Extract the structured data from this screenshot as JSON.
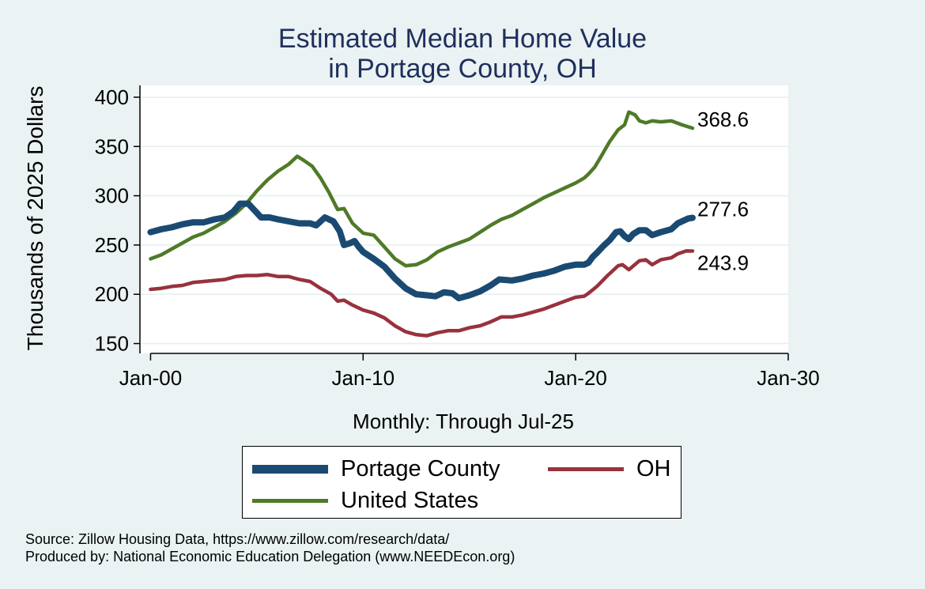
{
  "chart_data": {
    "type": "line",
    "title_lines": [
      "Estimated Median Home Value",
      "in Portage County, OH"
    ],
    "ylabel": "Thousands of 2025 Dollars",
    "xlabel": "Monthly: Through Jul-25",
    "ylim": [
      140,
      412
    ],
    "yticks": [
      150,
      200,
      250,
      300,
      350,
      400
    ],
    "xlim": [
      1999.5,
      2030.0
    ],
    "xticks": [
      {
        "value": 2000,
        "label": "Jan-00"
      },
      {
        "value": 2010,
        "label": "Jan-10"
      },
      {
        "value": 2020,
        "label": "Jan-20"
      },
      {
        "value": 2030,
        "label": "Jan-30"
      }
    ],
    "grid": true,
    "legend_position": "bottom",
    "series": [
      {
        "name": "Portage County",
        "color": "#1a4a72",
        "end_label": "277.6",
        "points": [
          [
            2000.0,
            263
          ],
          [
            2000.5,
            266
          ],
          [
            2001.0,
            268
          ],
          [
            2001.5,
            271
          ],
          [
            2002.0,
            273
          ],
          [
            2002.5,
            273
          ],
          [
            2003.0,
            276
          ],
          [
            2003.5,
            278
          ],
          [
            2003.9,
            284
          ],
          [
            2004.2,
            292
          ],
          [
            2004.6,
            292
          ],
          [
            2004.9,
            285
          ],
          [
            2005.2,
            278
          ],
          [
            2005.6,
            278
          ],
          [
            2006.0,
            276
          ],
          [
            2006.5,
            274
          ],
          [
            2007.0,
            272
          ],
          [
            2007.5,
            272
          ],
          [
            2007.8,
            270
          ],
          [
            2008.2,
            278
          ],
          [
            2008.6,
            274
          ],
          [
            2008.9,
            264
          ],
          [
            2009.1,
            250
          ],
          [
            2009.4,
            252
          ],
          [
            2009.6,
            254
          ],
          [
            2009.8,
            248
          ],
          [
            2010.0,
            243
          ],
          [
            2010.5,
            236
          ],
          [
            2011.0,
            228
          ],
          [
            2011.5,
            216
          ],
          [
            2012.0,
            206
          ],
          [
            2012.5,
            200
          ],
          [
            2013.0,
            199
          ],
          [
            2013.4,
            198
          ],
          [
            2013.8,
            202
          ],
          [
            2014.2,
            201
          ],
          [
            2014.5,
            196
          ],
          [
            2015.0,
            199
          ],
          [
            2015.5,
            203
          ],
          [
            2016.0,
            209
          ],
          [
            2016.4,
            215
          ],
          [
            2017.0,
            214
          ],
          [
            2017.5,
            216
          ],
          [
            2018.0,
            219
          ],
          [
            2018.5,
            221
          ],
          [
            2019.0,
            224
          ],
          [
            2019.5,
            228
          ],
          [
            2020.0,
            230
          ],
          [
            2020.4,
            230
          ],
          [
            2020.6,
            232
          ],
          [
            2020.8,
            238
          ],
          [
            2021.0,
            242
          ],
          [
            2021.3,
            249
          ],
          [
            2021.6,
            255
          ],
          [
            2021.9,
            263
          ],
          [
            2022.1,
            264
          ],
          [
            2022.3,
            259
          ],
          [
            2022.5,
            256
          ],
          [
            2022.7,
            261
          ],
          [
            2023.0,
            265
          ],
          [
            2023.3,
            265
          ],
          [
            2023.6,
            260
          ],
          [
            2024.0,
            263
          ],
          [
            2024.5,
            266
          ],
          [
            2024.8,
            272
          ],
          [
            2025.1,
            275
          ],
          [
            2025.3,
            277
          ],
          [
            2025.5,
            277.6
          ]
        ]
      },
      {
        "name": "OH",
        "color": "#98323c",
        "end_label": "243.9",
        "points": [
          [
            2000.0,
            205
          ],
          [
            2000.5,
            206
          ],
          [
            2001.0,
            208
          ],
          [
            2001.5,
            209
          ],
          [
            2002.0,
            212
          ],
          [
            2002.5,
            213
          ],
          [
            2003.0,
            214
          ],
          [
            2003.5,
            215
          ],
          [
            2004.0,
            218
          ],
          [
            2004.5,
            219
          ],
          [
            2005.0,
            219
          ],
          [
            2005.5,
            220
          ],
          [
            2006.0,
            218
          ],
          [
            2006.5,
            218
          ],
          [
            2007.0,
            215
          ],
          [
            2007.5,
            213
          ],
          [
            2008.0,
            206
          ],
          [
            2008.5,
            200
          ],
          [
            2008.8,
            193
          ],
          [
            2009.1,
            194
          ],
          [
            2009.5,
            189
          ],
          [
            2010.0,
            184
          ],
          [
            2010.5,
            181
          ],
          [
            2011.0,
            176
          ],
          [
            2011.5,
            168
          ],
          [
            2012.0,
            162
          ],
          [
            2012.5,
            159
          ],
          [
            2013.0,
            158
          ],
          [
            2013.5,
            161
          ],
          [
            2014.0,
            163
          ],
          [
            2014.5,
            163
          ],
          [
            2015.0,
            166
          ],
          [
            2015.5,
            168
          ],
          [
            2016.0,
            172
          ],
          [
            2016.5,
            177
          ],
          [
            2017.0,
            177
          ],
          [
            2017.5,
            179
          ],
          [
            2018.0,
            182
          ],
          [
            2018.5,
            185
          ],
          [
            2019.0,
            189
          ],
          [
            2019.5,
            193
          ],
          [
            2020.0,
            197
          ],
          [
            2020.4,
            198
          ],
          [
            2020.6,
            201
          ],
          [
            2021.0,
            208
          ],
          [
            2021.5,
            219
          ],
          [
            2022.0,
            229
          ],
          [
            2022.2,
            230
          ],
          [
            2022.5,
            225
          ],
          [
            2023.0,
            234
          ],
          [
            2023.3,
            235
          ],
          [
            2023.6,
            230
          ],
          [
            2024.0,
            235
          ],
          [
            2024.5,
            237
          ],
          [
            2024.8,
            241
          ],
          [
            2025.2,
            244
          ],
          [
            2025.5,
            243.9
          ]
        ]
      },
      {
        "name": "United States",
        "color": "#4f7a28",
        "end_label": "368.6",
        "points": [
          [
            2000.0,
            236
          ],
          [
            2000.5,
            240
          ],
          [
            2001.0,
            246
          ],
          [
            2001.5,
            252
          ],
          [
            2002.0,
            258
          ],
          [
            2002.5,
            262
          ],
          [
            2003.0,
            268
          ],
          [
            2003.5,
            274
          ],
          [
            2004.0,
            282
          ],
          [
            2004.5,
            292
          ],
          [
            2005.0,
            305
          ],
          [
            2005.5,
            316
          ],
          [
            2006.0,
            325
          ],
          [
            2006.5,
            332
          ],
          [
            2006.9,
            340
          ],
          [
            2007.2,
            336
          ],
          [
            2007.6,
            330
          ],
          [
            2008.0,
            318
          ],
          [
            2008.4,
            303
          ],
          [
            2008.8,
            286
          ],
          [
            2009.1,
            287
          ],
          [
            2009.5,
            272
          ],
          [
            2010.0,
            262
          ],
          [
            2010.5,
            260
          ],
          [
            2011.0,
            248
          ],
          [
            2011.5,
            236
          ],
          [
            2012.0,
            229
          ],
          [
            2012.5,
            230
          ],
          [
            2013.0,
            235
          ],
          [
            2013.5,
            243
          ],
          [
            2014.0,
            248
          ],
          [
            2014.5,
            252
          ],
          [
            2015.0,
            256
          ],
          [
            2015.5,
            263
          ],
          [
            2016.0,
            270
          ],
          [
            2016.5,
            276
          ],
          [
            2017.0,
            280
          ],
          [
            2017.5,
            286
          ],
          [
            2018.0,
            292
          ],
          [
            2018.5,
            298
          ],
          [
            2019.0,
            303
          ],
          [
            2019.5,
            308
          ],
          [
            2020.0,
            313
          ],
          [
            2020.4,
            318
          ],
          [
            2020.6,
            322
          ],
          [
            2020.9,
            329
          ],
          [
            2021.2,
            340
          ],
          [
            2021.6,
            355
          ],
          [
            2022.0,
            367
          ],
          [
            2022.3,
            372
          ],
          [
            2022.5,
            385
          ],
          [
            2022.8,
            382
          ],
          [
            2023.0,
            376
          ],
          [
            2023.3,
            374
          ],
          [
            2023.6,
            376
          ],
          [
            2024.0,
            375
          ],
          [
            2024.5,
            376
          ],
          [
            2025.0,
            372
          ],
          [
            2025.5,
            368.6
          ]
        ]
      }
    ],
    "legend_order": [
      "Portage County",
      "OH",
      "United States"
    ]
  },
  "source_line": "Source: Zillow Housing Data, https://www.zillow.com/research/data/",
  "produced_line": "Produced by: National Economic Education Delegation (www.NEEDEcon.org)"
}
